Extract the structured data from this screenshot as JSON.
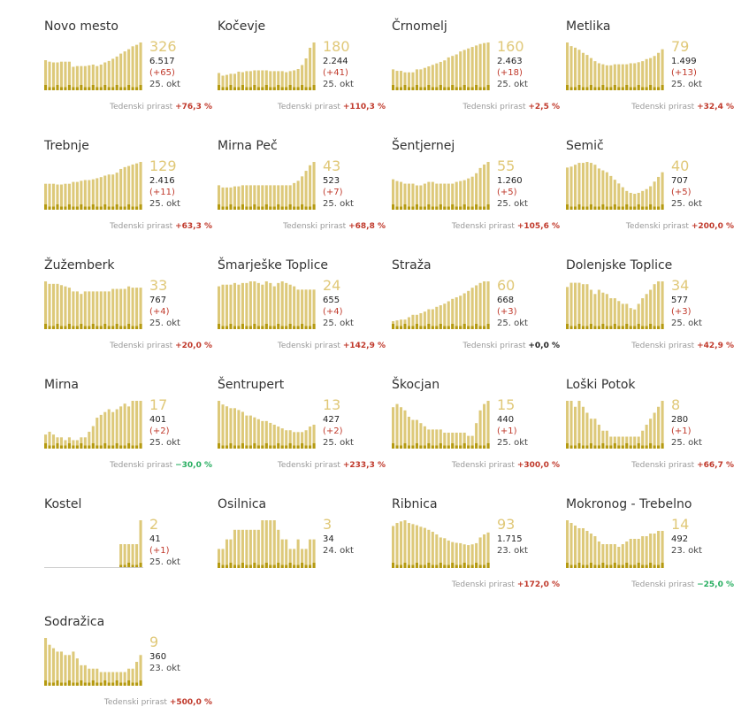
{
  "growth_label": "Tedenski prirast",
  "colors": {
    "bar": "#ddc97a",
    "bar_dark": "#b59a10",
    "number": "#e0c878",
    "positive": "#c0392b",
    "negative": "#27ae60"
  },
  "chart_data": [
    {
      "type": "bar",
      "title": "Novo mesto",
      "current": "326",
      "total": "6.517",
      "diff": "(+65)",
      "date": "25. okt",
      "growth": "+76,3 %",
      "values": [
        205,
        195,
        190,
        190,
        195,
        195,
        195,
        160,
        165,
        165,
        165,
        170,
        175,
        165,
        175,
        190,
        200,
        215,
        230,
        250,
        265,
        280,
        300,
        310,
        326
      ]
    },
    {
      "type": "bar",
      "title": "Kočevje",
      "current": "180",
      "total": "2.244",
      "diff": "(+41)",
      "date": "25. okt",
      "growth": "+110,3 %",
      "values": [
        65,
        55,
        58,
        62,
        62,
        70,
        68,
        72,
        72,
        75,
        75,
        75,
        75,
        72,
        72,
        72,
        72,
        68,
        72,
        75,
        80,
        95,
        120,
        160,
        180
      ]
    },
    {
      "type": "bar",
      "title": "Črnomelj",
      "current": "160",
      "total": "2.463",
      "diff": "(+18)",
      "date": "25. okt",
      "growth": "+2,5 %",
      "values": [
        70,
        65,
        65,
        60,
        60,
        60,
        70,
        70,
        75,
        80,
        85,
        90,
        95,
        100,
        110,
        115,
        120,
        130,
        135,
        140,
        145,
        150,
        155,
        158,
        160
      ]
    },
    {
      "type": "bar",
      "title": "Metlika",
      "current": "79",
      "total": "1.499",
      "diff": "(+13)",
      "date": "25. okt",
      "growth": "+32,4 %",
      "values": [
        92,
        85,
        82,
        78,
        72,
        68,
        62,
        56,
        52,
        50,
        48,
        48,
        50,
        50,
        50,
        50,
        52,
        52,
        54,
        56,
        60,
        62,
        66,
        72,
        79
      ]
    },
    {
      "type": "bar",
      "title": "Trebnje",
      "current": "129",
      "total": "2.416",
      "diff": "(+11)",
      "date": "25. okt",
      "growth": "+63,3 %",
      "values": [
        70,
        70,
        70,
        68,
        68,
        70,
        70,
        75,
        75,
        78,
        80,
        80,
        82,
        85,
        88,
        92,
        95,
        95,
        100,
        110,
        115,
        118,
        122,
        125,
        129
      ]
    },
    {
      "type": "bar",
      "title": "Mirna Peč",
      "current": "43",
      "total": "523",
      "diff": "(+7)",
      "date": "25. okt",
      "growth": "+68,8 %",
      "values": [
        22,
        20,
        20,
        20,
        21,
        21,
        22,
        22,
        22,
        22,
        22,
        22,
        22,
        22,
        22,
        22,
        22,
        22,
        22,
        24,
        26,
        30,
        35,
        40,
        43
      ]
    },
    {
      "type": "bar",
      "title": "Šentjernej",
      "current": "55",
      "total": "1.260",
      "diff": "(+5)",
      "date": "25. okt",
      "growth": "+105,6 %",
      "values": [
        35,
        33,
        32,
        30,
        30,
        30,
        28,
        28,
        30,
        32,
        32,
        30,
        30,
        30,
        30,
        30,
        32,
        33,
        34,
        36,
        38,
        42,
        48,
        52,
        55
      ]
    },
    {
      "type": "bar",
      "title": "Semič",
      "current": "40",
      "total": "707",
      "diff": "(+5)",
      "date": "25. okt",
      "growth": "+200,0 %",
      "values": [
        45,
        46,
        48,
        50,
        50,
        51,
        50,
        48,
        44,
        42,
        40,
        36,
        32,
        28,
        24,
        20,
        18,
        17,
        18,
        20,
        22,
        25,
        30,
        35,
        40
      ]
    },
    {
      "type": "bar",
      "title": "Žužemberk",
      "current": "33",
      "total": "767",
      "diff": "(+4)",
      "date": "25. okt",
      "growth": "+20,0 %",
      "values": [
        38,
        36,
        36,
        36,
        35,
        34,
        33,
        30,
        30,
        28,
        30,
        30,
        30,
        30,
        30,
        30,
        30,
        32,
        32,
        32,
        32,
        34,
        33,
        33,
        33
      ]
    },
    {
      "type": "bar",
      "title": "Šmarješke Toplice",
      "current": "24",
      "total": "655",
      "diff": "(+4)",
      "date": "25. okt",
      "growth": "+142,9 %",
      "values": [
        26,
        27,
        27,
        27,
        28,
        27,
        28,
        28,
        29,
        29,
        28,
        27,
        29,
        28,
        26,
        28,
        29,
        28,
        27,
        26,
        24,
        24,
        24,
        24,
        24
      ]
    },
    {
      "type": "bar",
      "title": "Straža",
      "current": "60",
      "total": "668",
      "diff": "(+3)",
      "date": "25. okt",
      "growth": "+0,0 %",
      "values": [
        10,
        11,
        12,
        12,
        15,
        18,
        18,
        20,
        22,
        25,
        25,
        28,
        30,
        32,
        35,
        38,
        40,
        42,
        45,
        48,
        52,
        55,
        58,
        60,
        60
      ]
    },
    {
      "type": "bar",
      "title": "Dolenjske Toplice",
      "current": "34",
      "total": "577",
      "diff": "(+3)",
      "date": "25. okt",
      "growth": "+42,9 %",
      "values": [
        30,
        33,
        33,
        33,
        32,
        32,
        28,
        25,
        28,
        26,
        25,
        22,
        22,
        20,
        18,
        18,
        15,
        14,
        18,
        22,
        25,
        28,
        32,
        34,
        34
      ]
    },
    {
      "type": "bar",
      "title": "Mirna",
      "current": "17",
      "total": "401",
      "diff": "(+2)",
      "date": "25. okt",
      "growth": "−30,0 %",
      "values": [
        5,
        6,
        5,
        4,
        4,
        3,
        4,
        3,
        3,
        4,
        4,
        6,
        8,
        11,
        12,
        13,
        14,
        13,
        14,
        15,
        16,
        15,
        17,
        17,
        17
      ]
    },
    {
      "type": "bar",
      "title": "Šentrupert",
      "current": "13",
      "total": "427",
      "diff": "(+2)",
      "date": "25. okt",
      "growth": "+233,3 %",
      "values": [
        26,
        24,
        23,
        22,
        22,
        21,
        20,
        18,
        18,
        17,
        16,
        15,
        15,
        14,
        13,
        12,
        11,
        10,
        10,
        9,
        9,
        9,
        10,
        12,
        13
      ]
    },
    {
      "type": "bar",
      "title": "Škocjan",
      "current": "15",
      "total": "440",
      "diff": "(+1)",
      "date": "25. okt",
      "growth": "+300,0 %",
      "values": [
        13,
        14,
        13,
        12,
        10,
        9,
        9,
        8,
        7,
        6,
        6,
        6,
        6,
        5,
        5,
        5,
        5,
        5,
        5,
        4,
        4,
        8,
        12,
        14,
        15
      ]
    },
    {
      "type": "bar",
      "title": "Loški Potok",
      "current": "8",
      "total": "280",
      "diff": "(+1)",
      "date": "25. okt",
      "growth": "+66,7 %",
      "values": [
        8,
        8,
        7,
        8,
        7,
        6,
        5,
        5,
        4,
        3,
        3,
        2,
        2,
        2,
        2,
        2,
        2,
        2,
        2,
        3,
        4,
        5,
        6,
        7,
        8
      ]
    },
    {
      "type": "bar",
      "title": "Kostel",
      "current": "2",
      "total": "41",
      "diff": "(+1)",
      "date": "25. okt",
      "growth": "",
      "values": [
        0,
        0,
        0,
        0,
        0,
        0,
        0,
        0,
        0,
        0,
        0,
        0,
        0,
        0,
        0,
        0,
        0,
        0,
        0,
        1,
        1,
        1,
        1,
        1,
        2
      ]
    },
    {
      "type": "bar",
      "title": "Osilnica",
      "current": "3",
      "total": "34",
      "diff": "",
      "date": "24. okt",
      "growth": "",
      "values": [
        2,
        2,
        3,
        3,
        4,
        4,
        4,
        4,
        4,
        4,
        4,
        5,
        5,
        5,
        5,
        4,
        3,
        3,
        2,
        2,
        3,
        2,
        2,
        3,
        3
      ]
    },
    {
      "type": "bar",
      "title": "Ribnica",
      "current": "93",
      "total": "1.715",
      "diff": "",
      "date": "23. okt",
      "growth": "+172,0 %",
      "values": [
        110,
        118,
        122,
        125,
        118,
        115,
        112,
        108,
        105,
        100,
        95,
        88,
        80,
        78,
        72,
        68,
        66,
        65,
        62,
        60,
        62,
        65,
        80,
        88,
        93
      ]
    },
    {
      "type": "bar",
      "title": "Mokronog - Trebelno",
      "current": "14",
      "total": "492",
      "diff": "",
      "date": "23. okt",
      "growth": "−25,0 %",
      "values": [
        18,
        17,
        16,
        15,
        15,
        14,
        13,
        12,
        10,
        9,
        9,
        9,
        9,
        8,
        9,
        10,
        11,
        11,
        11,
        12,
        12,
        13,
        13,
        14,
        14
      ]
    },
    {
      "type": "bar",
      "title": "Sodražica",
      "current": "9",
      "total": "360",
      "diff": "",
      "date": "23. okt",
      "growth": "+500,0 %",
      "values": [
        14,
        12,
        11,
        10,
        10,
        9,
        9,
        10,
        8,
        6,
        6,
        5,
        5,
        5,
        4,
        4,
        4,
        4,
        4,
        4,
        4,
        5,
        5,
        7,
        9
      ]
    }
  ]
}
